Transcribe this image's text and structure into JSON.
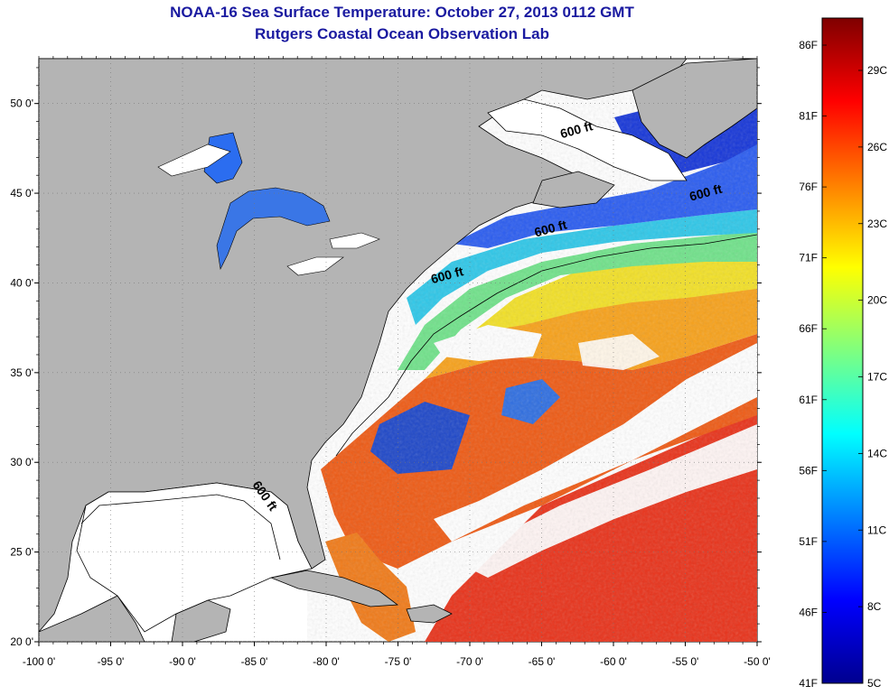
{
  "title": {
    "line1": "NOAA-16 Sea Surface Temperature:  October 27, 2013 0112 GMT",
    "line2": "Rutgers Coastal Ocean Observation Lab"
  },
  "map": {
    "lon_range": [
      -100,
      -50
    ],
    "lat_range": [
      20,
      52.5
    ],
    "lon_ticks": [
      {
        "value": -100,
        "label": "-100 0'"
      },
      {
        "value": -95,
        "label": "-95 0'"
      },
      {
        "value": -90,
        "label": "-90 0'"
      },
      {
        "value": -85,
        "label": "-85 0'"
      },
      {
        "value": -80,
        "label": "-80 0'"
      },
      {
        "value": -75,
        "label": "-75 0'"
      },
      {
        "value": -70,
        "label": "-70 0'"
      },
      {
        "value": -65,
        "label": "-65 0'"
      },
      {
        "value": -60,
        "label": "-60 0'"
      },
      {
        "value": -55,
        "label": "-55 0'"
      },
      {
        "value": -50,
        "label": "-50 0'"
      }
    ],
    "lat_ticks": [
      {
        "value": 20,
        "label": "20 0'"
      },
      {
        "value": 25,
        "label": "25 0'"
      },
      {
        "value": 30,
        "label": "30 0'"
      },
      {
        "value": 35,
        "label": "35 0'"
      },
      {
        "value": 40,
        "label": "40 0'"
      },
      {
        "value": 45,
        "label": "45 0'"
      },
      {
        "value": 50,
        "label": "50 0'"
      }
    ],
    "contour_labels": [
      {
        "text": "600 ft",
        "lon": -62.5,
        "lat": 48.3
      },
      {
        "text": "600 ft",
        "lon": -53.5,
        "lat": 44.8
      },
      {
        "text": "600 ft",
        "lon": -64.3,
        "lat": 42.8
      },
      {
        "text": "600 ft",
        "lon": -71.5,
        "lat": 40.2
      },
      {
        "text": "600 ft",
        "lon": -84.5,
        "lat": 28.0
      }
    ],
    "land_color": "#b4b4b4",
    "cloud_color": "#ffffff"
  },
  "colorbar": {
    "f_labels": [
      "86F",
      "81F",
      "76F",
      "71F",
      "66F",
      "61F",
      "56F",
      "51F",
      "46F",
      "41F"
    ],
    "c_labels": [
      "29C",
      "26C",
      "23C",
      "20C",
      "17C",
      "14C",
      "11C",
      "8C",
      "5C"
    ]
  }
}
